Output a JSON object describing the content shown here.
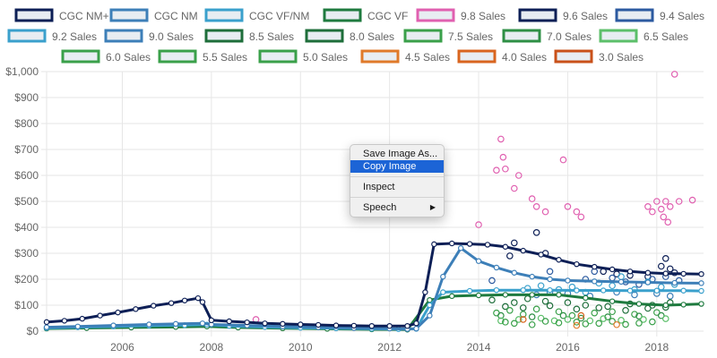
{
  "colors": {
    "grid": "#e6e6e6",
    "text": "#666666"
  },
  "legend": [
    {
      "name": "CGC NM+",
      "color": "#0d1f56"
    },
    {
      "name": "CGC NM",
      "color": "#3d7fb8"
    },
    {
      "name": "CGC VF/NM",
      "color": "#3aa0cc"
    },
    {
      "name": "CGC VF",
      "color": "#1e7a3e"
    },
    {
      "name": "9.8 Sales",
      "color": "#e060b0"
    },
    {
      "name": "9.6 Sales",
      "color": "#0d1f56"
    },
    {
      "name": "9.4 Sales",
      "color": "#2c5aa0"
    },
    {
      "name": "9.2 Sales",
      "color": "#3aa0cc"
    },
    {
      "name": "9.0 Sales",
      "color": "#3d7fb8"
    },
    {
      "name": "8.5 Sales",
      "color": "#1e6e3a"
    },
    {
      "name": "8.0 Sales",
      "color": "#1e6e3a"
    },
    {
      "name": "7.5 Sales",
      "color": "#3aa04a"
    },
    {
      "name": "7.0 Sales",
      "color": "#2e8f45"
    },
    {
      "name": "6.5 Sales",
      "color": "#5cbf6a"
    },
    {
      "name": "6.0 Sales",
      "color": "#3aa04a"
    },
    {
      "name": "5.5 Sales",
      "color": "#3aa04a"
    },
    {
      "name": "5.0 Sales",
      "color": "#3aa04a"
    },
    {
      "name": "4.5 Sales",
      "color": "#e07a2a"
    },
    {
      "name": "4.0 Sales",
      "color": "#d9651f"
    },
    {
      "name": "3.0 Sales",
      "color": "#c9511a"
    }
  ],
  "context_menu": {
    "items": [
      {
        "label": "Save Image As...",
        "selected": false
      },
      {
        "label": "Copy Image",
        "selected": true
      },
      {
        "label": "Inspect",
        "selected": false,
        "separator_before": true
      },
      {
        "label": "Speech",
        "selected": false,
        "separator_before": true,
        "submenu": true
      }
    ]
  },
  "chart_data": {
    "type": "line",
    "x_ticks": [
      2006,
      2008,
      2010,
      2012,
      2014,
      2016,
      2018
    ],
    "xlim": [
      2004.3,
      2019.05
    ],
    "y_ticks": [
      "$0",
      "$100",
      "$200",
      "$300",
      "$400",
      "$500",
      "$600",
      "$700",
      "$800",
      "$900",
      "$1,000"
    ],
    "ylim": [
      0,
      1000
    ],
    "grid": true,
    "legend_position": "top",
    "series": [
      {
        "name": "CGC NM+",
        "color": "#0d1f56",
        "points": [
          [
            2004.3,
            35
          ],
          [
            2004.7,
            40
          ],
          [
            2005.1,
            48
          ],
          [
            2005.5,
            60
          ],
          [
            2005.9,
            72
          ],
          [
            2006.3,
            85
          ],
          [
            2006.7,
            98
          ],
          [
            2007.1,
            108
          ],
          [
            2007.4,
            118
          ],
          [
            2007.7,
            127
          ],
          [
            2007.8,
            112
          ],
          [
            2008.0,
            42
          ],
          [
            2008.4,
            38
          ],
          [
            2008.8,
            34
          ],
          [
            2009.2,
            30
          ],
          [
            2009.6,
            28
          ],
          [
            2010.0,
            26
          ],
          [
            2010.4,
            24
          ],
          [
            2010.8,
            22
          ],
          [
            2011.2,
            21
          ],
          [
            2011.6,
            20
          ],
          [
            2012.0,
            20
          ],
          [
            2012.4,
            20
          ],
          [
            2012.6,
            30
          ],
          [
            2012.8,
            150
          ],
          [
            2013.0,
            335
          ],
          [
            2013.4,
            338
          ],
          [
            2013.8,
            336
          ],
          [
            2014.2,
            333
          ],
          [
            2014.6,
            325
          ],
          [
            2015.0,
            310
          ],
          [
            2015.4,
            295
          ],
          [
            2015.8,
            275
          ],
          [
            2016.2,
            258
          ],
          [
            2016.6,
            248
          ],
          [
            2017.0,
            238
          ],
          [
            2017.4,
            230
          ],
          [
            2017.8,
            225
          ],
          [
            2018.2,
            222
          ],
          [
            2018.6,
            221
          ],
          [
            2019.0,
            220
          ]
        ]
      },
      {
        "name": "CGC NM",
        "color": "#3d7fb8",
        "points": [
          [
            2004.3,
            15
          ],
          [
            2005.0,
            18
          ],
          [
            2005.8,
            22
          ],
          [
            2006.6,
            26
          ],
          [
            2007.2,
            28
          ],
          [
            2007.8,
            30
          ],
          [
            2008.0,
            26
          ],
          [
            2008.8,
            22
          ],
          [
            2009.6,
            18
          ],
          [
            2010.4,
            15
          ],
          [
            2011.2,
            12
          ],
          [
            2012.0,
            10
          ],
          [
            2012.4,
            8
          ],
          [
            2012.6,
            10
          ],
          [
            2012.9,
            60
          ],
          [
            2013.2,
            210
          ],
          [
            2013.6,
            320
          ],
          [
            2014.0,
            270
          ],
          [
            2014.4,
            245
          ],
          [
            2014.8,
            225
          ],
          [
            2015.2,
            210
          ],
          [
            2015.6,
            200
          ],
          [
            2016.0,
            195
          ],
          [
            2016.6,
            192
          ],
          [
            2017.2,
            190
          ],
          [
            2017.8,
            188
          ],
          [
            2018.4,
            186
          ],
          [
            2019.0,
            185
          ]
        ]
      },
      {
        "name": "CGC VF/NM",
        "color": "#3aa0cc",
        "points": [
          [
            2004.3,
            12
          ],
          [
            2005.0,
            15
          ],
          [
            2005.8,
            18
          ],
          [
            2006.6,
            21
          ],
          [
            2007.4,
            23
          ],
          [
            2007.9,
            25
          ],
          [
            2008.4,
            20
          ],
          [
            2009.2,
            16
          ],
          [
            2010.0,
            13
          ],
          [
            2010.8,
            11
          ],
          [
            2011.6,
            9
          ],
          [
            2012.2,
            8
          ],
          [
            2012.6,
            9
          ],
          [
            2012.9,
            100
          ],
          [
            2013.2,
            150
          ],
          [
            2013.8,
            155
          ],
          [
            2014.4,
            158
          ],
          [
            2015.0,
            158
          ],
          [
            2015.6,
            158
          ],
          [
            2016.2,
            157
          ],
          [
            2016.8,
            157
          ],
          [
            2017.4,
            156
          ],
          [
            2018.0,
            156
          ],
          [
            2018.6,
            156
          ],
          [
            2019.0,
            155
          ]
        ]
      },
      {
        "name": "CGC VF",
        "color": "#1e7a3e",
        "points": [
          [
            2004.3,
            10
          ],
          [
            2005.2,
            12
          ],
          [
            2006.2,
            14
          ],
          [
            2007.2,
            16
          ],
          [
            2007.9,
            18
          ],
          [
            2008.6,
            14
          ],
          [
            2009.6,
            11
          ],
          [
            2010.6,
            9
          ],
          [
            2011.6,
            7
          ],
          [
            2012.4,
            6
          ],
          [
            2012.9,
            120
          ],
          [
            2013.4,
            135
          ],
          [
            2014.0,
            138
          ],
          [
            2014.6,
            140
          ],
          [
            2015.2,
            140
          ],
          [
            2015.8,
            140
          ],
          [
            2016.4,
            128
          ],
          [
            2017.0,
            115
          ],
          [
            2017.6,
            105
          ],
          [
            2018.2,
            100
          ],
          [
            2018.6,
            102
          ],
          [
            2019.0,
            105
          ]
        ]
      }
    ],
    "scatter": [
      {
        "name": "9.8 Sales",
        "color": "#e060b0",
        "points": [
          [
            2009.0,
            45
          ],
          [
            2014.0,
            410
          ],
          [
            2014.5,
            740
          ],
          [
            2014.55,
            670
          ],
          [
            2014.4,
            620
          ],
          [
            2014.6,
            625
          ],
          [
            2014.8,
            550
          ],
          [
            2014.9,
            600
          ],
          [
            2015.2,
            510
          ],
          [
            2015.3,
            480
          ],
          [
            2015.5,
            460
          ],
          [
            2015.9,
            660
          ],
          [
            2016.0,
            480
          ],
          [
            2016.2,
            460
          ],
          [
            2016.3,
            440
          ],
          [
            2017.8,
            480
          ],
          [
            2017.9,
            460
          ],
          [
            2018.0,
            500
          ],
          [
            2018.1,
            470
          ],
          [
            2018.15,
            440
          ],
          [
            2018.2,
            500
          ],
          [
            2018.25,
            420
          ],
          [
            2018.3,
            480
          ],
          [
            2018.4,
            990
          ],
          [
            2018.5,
            500
          ],
          [
            2018.8,
            505
          ]
        ]
      },
      {
        "name": "9.6 Sales",
        "color": "#0d1f56",
        "points": [
          [
            2014.7,
            290
          ],
          [
            2014.8,
            340
          ],
          [
            2015.3,
            380
          ],
          [
            2015.5,
            300
          ],
          [
            2016.8,
            230
          ],
          [
            2017.1,
            220
          ],
          [
            2017.4,
            215
          ],
          [
            2017.8,
            210
          ],
          [
            2018.1,
            250
          ],
          [
            2018.2,
            280
          ],
          [
            2018.3,
            240
          ],
          [
            2018.4,
            225
          ]
        ]
      },
      {
        "name": "9.4 Sales",
        "color": "#2c5aa0",
        "points": [
          [
            2014.3,
            195
          ],
          [
            2015.6,
            230
          ],
          [
            2016.4,
            200
          ],
          [
            2016.6,
            230
          ],
          [
            2017.0,
            205
          ],
          [
            2017.3,
            190
          ],
          [
            2017.6,
            180
          ],
          [
            2017.9,
            200
          ],
          [
            2018.2,
            210
          ],
          [
            2018.5,
            195
          ]
        ]
      },
      {
        "name": "9.2 Sales",
        "color": "#3aa0cc",
        "points": [
          [
            2015.1,
            165
          ],
          [
            2015.4,
            175
          ],
          [
            2015.8,
            160
          ],
          [
            2016.1,
            170
          ],
          [
            2016.4,
            150
          ],
          [
            2016.7,
            185
          ],
          [
            2017.0,
            175
          ],
          [
            2017.2,
            210
          ],
          [
            2017.5,
            160
          ],
          [
            2017.8,
            190
          ],
          [
            2018.1,
            170
          ],
          [
            2018.4,
            180
          ]
        ]
      },
      {
        "name": "9.0 Sales",
        "color": "#3d7fb8",
        "points": [
          [
            2015.3,
            140
          ],
          [
            2015.6,
            150
          ],
          [
            2016.0,
            145
          ],
          [
            2016.5,
            135
          ],
          [
            2017.1,
            150
          ],
          [
            2017.5,
            140
          ],
          [
            2018.0,
            145
          ],
          [
            2018.3,
            135
          ]
        ]
      },
      {
        "name": "8.5 Sales",
        "color": "#1e6e3a",
        "points": [
          [
            2014.3,
            120
          ],
          [
            2014.8,
            110
          ],
          [
            2015.1,
            125
          ],
          [
            2015.5,
            115
          ],
          [
            2016.0,
            110
          ],
          [
            2016.4,
            100
          ],
          [
            2016.9,
            95
          ],
          [
            2017.4,
            105
          ],
          [
            2017.9,
            100
          ],
          [
            2018.3,
            110
          ]
        ]
      },
      {
        "name": "8.0 Sales",
        "color": "#1e6e3a",
        "points": [
          [
            2014.6,
            95
          ],
          [
            2015.0,
            90
          ],
          [
            2015.6,
            98
          ],
          [
            2016.2,
            85
          ],
          [
            2016.7,
            90
          ],
          [
            2017.3,
            80
          ],
          [
            2017.8,
            88
          ],
          [
            2018.2,
            92
          ]
        ]
      },
      {
        "name": "7.5 Sales",
        "color": "#3aa04a",
        "points": [
          [
            2014.4,
            70
          ],
          [
            2014.7,
            80
          ],
          [
            2015.0,
            65
          ],
          [
            2015.3,
            85
          ],
          [
            2015.8,
            75
          ],
          [
            2016.1,
            60
          ],
          [
            2016.6,
            70
          ],
          [
            2017.0,
            75
          ],
          [
            2017.5,
            65
          ],
          [
            2018.0,
            72
          ]
        ]
      },
      {
        "name": "7.0 Sales",
        "color": "#2e8f45",
        "points": [
          [
            2014.5,
            60
          ],
          [
            2015.2,
            55
          ],
          [
            2015.9,
            60
          ],
          [
            2016.3,
            50
          ],
          [
            2016.9,
            55
          ],
          [
            2017.6,
            58
          ],
          [
            2018.1,
            60
          ]
        ]
      },
      {
        "name": "6.5 Sales",
        "color": "#5cbf6a",
        "points": [
          [
            2014.5,
            40
          ],
          [
            2014.9,
            45
          ],
          [
            2015.4,
            50
          ],
          [
            2015.7,
            40
          ],
          [
            2016.0,
            45
          ],
          [
            2016.5,
            40
          ],
          [
            2016.8,
            48
          ],
          [
            2017.2,
            42
          ],
          [
            2017.7,
            45
          ],
          [
            2018.2,
            48
          ]
        ]
      },
      {
        "name": "6.0 Sales",
        "color": "#3aa04a",
        "points": [
          [
            2014.6,
            35
          ],
          [
            2015.5,
            38
          ],
          [
            2016.2,
            35
          ],
          [
            2017.0,
            38
          ],
          [
            2017.9,
            36
          ]
        ]
      },
      {
        "name": "5.5 Sales",
        "color": "#3aa04a",
        "points": [
          [
            2014.8,
            30
          ],
          [
            2015.8,
            32
          ],
          [
            2016.7,
            30
          ],
          [
            2017.6,
            31
          ]
        ]
      },
      {
        "name": "5.0 Sales",
        "color": "#3aa04a",
        "points": [
          [
            2015.2,
            25
          ],
          [
            2016.4,
            28
          ],
          [
            2017.3,
            26
          ]
        ]
      },
      {
        "name": "4.5 Sales",
        "color": "#e07a2a",
        "points": [
          [
            2016.2,
            22
          ],
          [
            2017.1,
            25
          ]
        ]
      },
      {
        "name": "4.0 Sales",
        "color": "#d9651f",
        "points": [
          [
            2015.0,
            45
          ],
          [
            2016.3,
            60
          ]
        ]
      },
      {
        "name": "3.0 Sales",
        "color": "#c9511a",
        "points": []
      }
    ]
  }
}
